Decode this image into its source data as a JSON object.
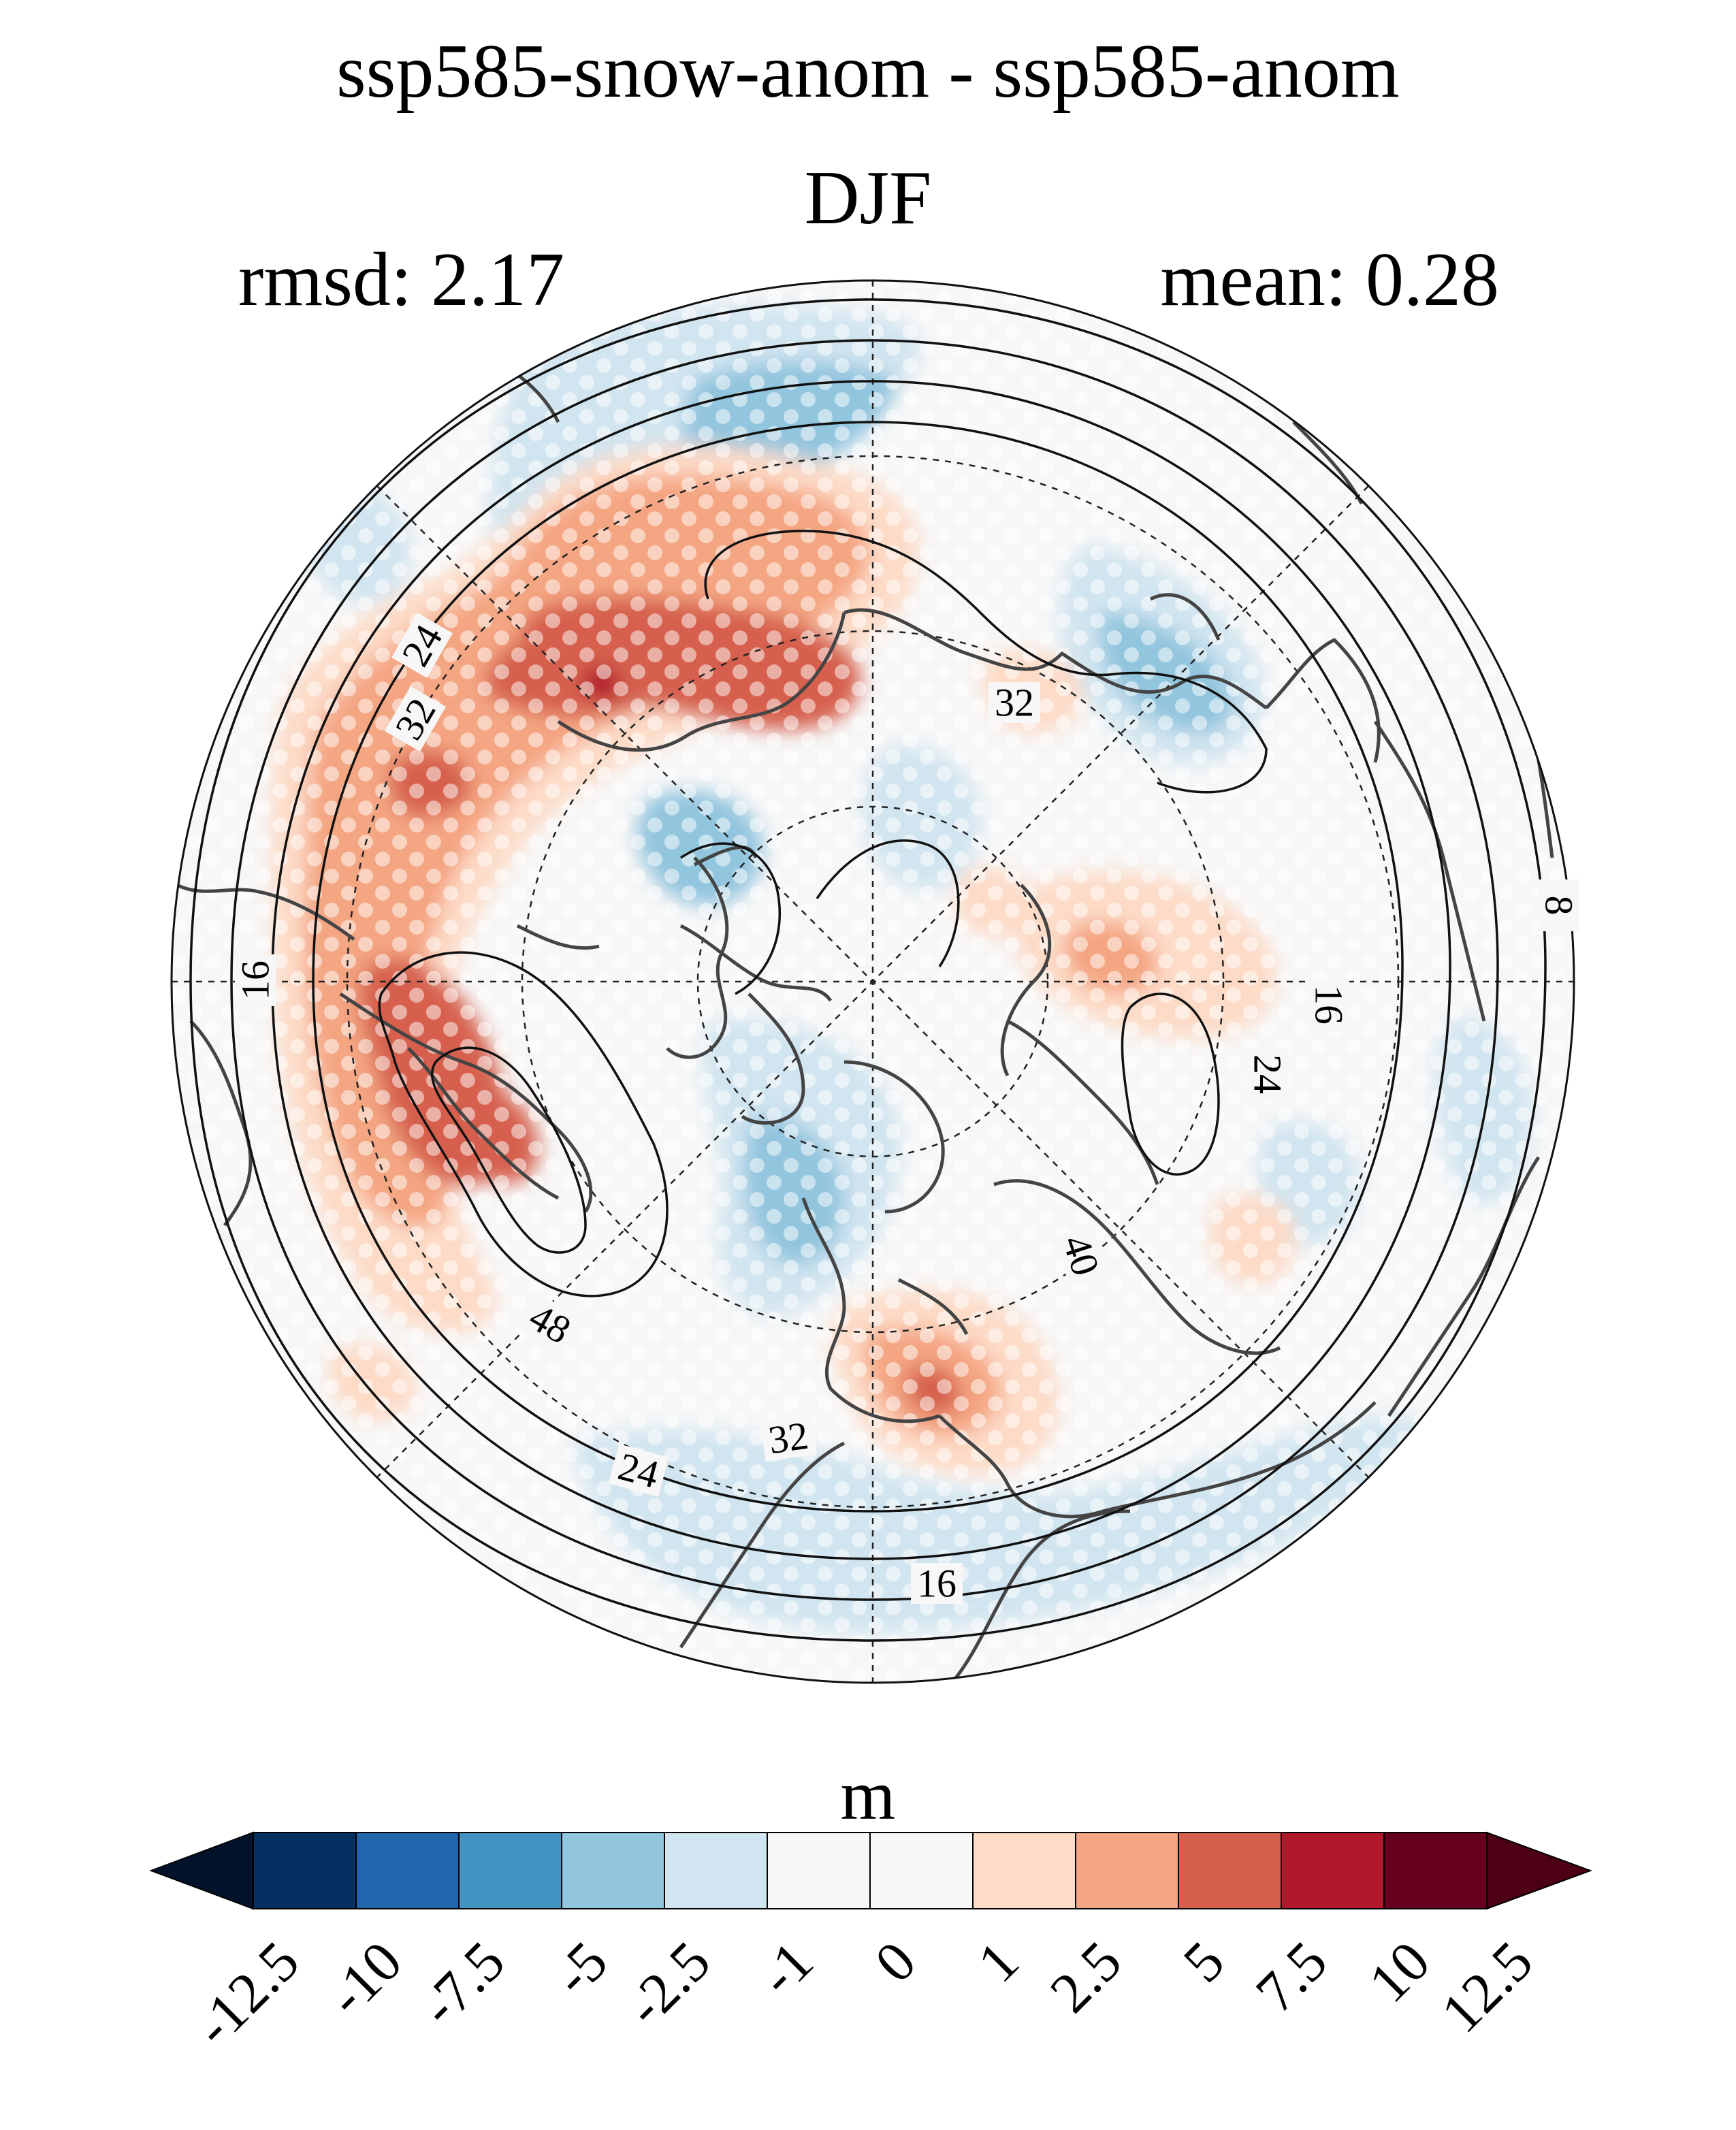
{
  "title": "ssp585-snow-anom - ssp585-anom",
  "season": "DJF",
  "rmsd_label": "rmsd: 2.17",
  "mean_label": "mean: 0.28",
  "colorbar": {
    "unit": "m",
    "ticks": [
      "-12.5",
      "-10",
      "-7.5",
      "-5",
      "-2.5",
      "-1",
      "0",
      "1",
      "2.5",
      "5",
      "7.5",
      "10",
      "12.5"
    ],
    "colors": [
      "#053061",
      "#2166ac",
      "#4393c3",
      "#92c5de",
      "#d1e5f0",
      "#f7f7f7",
      "#f7f7f7",
      "#fddbc7",
      "#f4a582",
      "#d6604d",
      "#b2182b",
      "#67001f"
    ],
    "under_color": "#04132c",
    "over_color": "#4d0014"
  },
  "contour_labels": [
    {
      "text": "24"
    },
    {
      "text": "32"
    },
    {
      "text": "16"
    },
    {
      "text": "32"
    },
    {
      "text": "8"
    },
    {
      "text": "16"
    },
    {
      "text": "24"
    },
    {
      "text": "40"
    },
    {
      "text": "48"
    },
    {
      "text": "32"
    },
    {
      "text": "24"
    },
    {
      "text": "16"
    }
  ]
}
